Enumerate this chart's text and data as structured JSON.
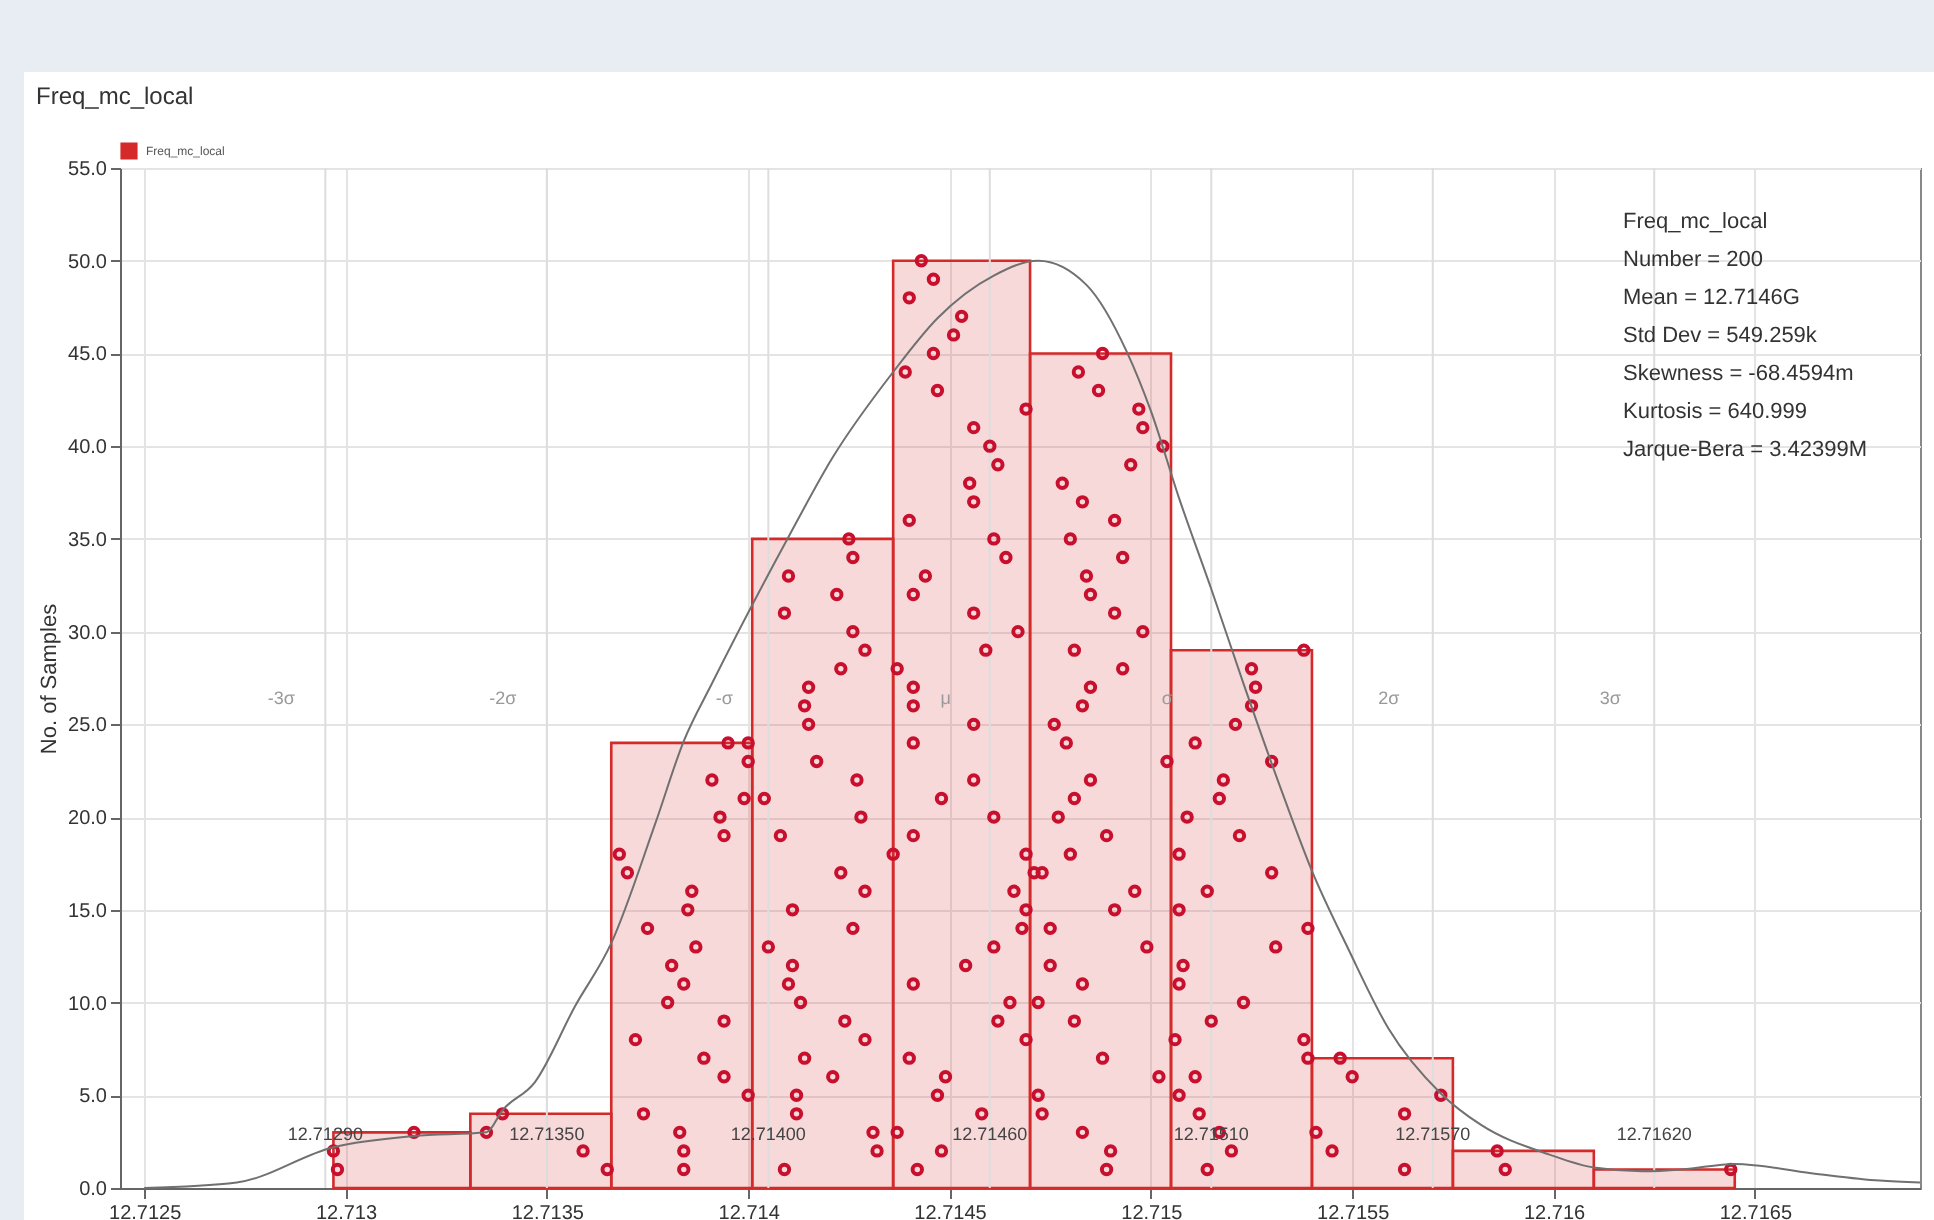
{
  "chart_data": {
    "type": "histogram",
    "title": "Freq_mc_local",
    "ylabel": "No. of Samples",
    "bins": [
      12.71297,
      12.71331,
      12.71366,
      12.71401,
      12.71436,
      12.7147,
      12.71505,
      12.7154,
      12.71575,
      12.7161,
      12.71645
    ],
    "series": [
      {
        "name": "Freq_mc_local",
        "type": "histogram",
        "color": "#d42a2a",
        "values": [
          3,
          4,
          24,
          35,
          50,
          45,
          29,
          7,
          2,
          1
        ]
      },
      {
        "type": "scatter",
        "marker": "circle",
        "color": "#c8102e",
        "x": [
          12.71297,
          12.71298,
          12.71317,
          12.71335,
          12.71339,
          12.71359,
          12.71365,
          12.71368,
          12.7137,
          12.71372,
          12.71374,
          12.71375,
          12.7138,
          12.71381,
          12.71383,
          12.71384,
          12.71384,
          12.71384,
          12.71385,
          12.71386,
          12.71387,
          12.71389,
          12.71391,
          12.71393,
          12.71394,
          12.71394,
          12.71394,
          12.71395,
          12.71399,
          12.714,
          12.714,
          12.714,
          12.71404,
          12.71405,
          12.71408,
          12.71409,
          12.7141,
          12.71411,
          12.71411,
          12.71412,
          12.71412,
          12.71413,
          12.71414,
          12.71414,
          12.71415,
          12.71415,
          12.71417,
          12.71421,
          12.71423,
          12.71423,
          12.71424,
          12.71426,
          12.71427,
          12.71428,
          12.71429,
          12.71429,
          12.71431,
          12.71432,
          12.7141,
          12.71409,
          12.71422,
          12.71425,
          12.71426,
          12.71426,
          12.71429,
          12.71436,
          12.71437,
          12.71437,
          12.71441,
          12.71441,
          12.71441,
          12.71441,
          12.71441,
          12.7144,
          12.71442,
          12.71447,
          12.71448,
          12.71448,
          12.71449,
          12.71454,
          12.71456,
          12.71456,
          12.71458,
          12.71443,
          12.7144,
          12.71446,
          12.71439,
          12.71446,
          12.71447,
          12.71451,
          12.71453,
          12.71456,
          12.71455,
          12.71456,
          12.7146,
          12.7144,
          12.71444,
          12.71441,
          12.71456,
          12.71459,
          12.71469,
          12.71462,
          12.71461,
          12.71464,
          12.71467,
          12.71461,
          12.71461,
          12.71462,
          12.71465,
          12.71466,
          12.71468,
          12.71469,
          12.71469,
          12.71469,
          12.71471,
          12.71472,
          12.71472,
          12.71473,
          12.71473,
          12.71475,
          12.71475,
          12.71476,
          12.71479,
          12.71477,
          12.7148,
          12.71481,
          12.71481,
          12.71483,
          12.71483,
          12.71483,
          12.71485,
          12.71485,
          12.71488,
          12.71489,
          12.7149,
          12.71489,
          12.71491,
          12.71496,
          12.71499,
          12.71502,
          12.71504,
          12.71488,
          12.71482,
          12.71487,
          12.71497,
          12.71498,
          12.71503,
          12.71495,
          12.71478,
          12.71483,
          12.71491,
          12.7148,
          12.71484,
          12.71485,
          12.71493,
          12.71491,
          12.71498,
          12.71481,
          12.71493,
          12.71506,
          12.71507,
          12.71507,
          12.71507,
          12.71507,
          12.71508,
          12.71509,
          12.71511,
          12.71511,
          12.71512,
          12.71514,
          12.71514,
          12.71515,
          12.71517,
          12.71517,
          12.71518,
          12.7152,
          12.71522,
          12.71521,
          12.71523,
          12.71525,
          12.71526,
          12.7153,
          12.7153,
          12.71531,
          12.71539,
          12.71538,
          12.71539,
          12.71538,
          12.71525,
          12.71541,
          12.71545,
          12.71547,
          12.7155,
          12.71563,
          12.71563,
          12.71572,
          12.71586,
          12.71588,
          12.71644
        ],
        "values": [
          2,
          1,
          3,
          3,
          4,
          2,
          1,
          18,
          17,
          8,
          4,
          14,
          10,
          12,
          3,
          2,
          1,
          11,
          15,
          16,
          13,
          7,
          22,
          20,
          9,
          19,
          6,
          24,
          21,
          23,
          5,
          24,
          21,
          13,
          19,
          1,
          11,
          12,
          15,
          4,
          5,
          10,
          7,
          26,
          27,
          25,
          23,
          6,
          28,
          17,
          9,
          14,
          22,
          20,
          16,
          8,
          3,
          2,
          33,
          31,
          32,
          35,
          34,
          30,
          29,
          18,
          28,
          3,
          27,
          26,
          24,
          19,
          11,
          7,
          1,
          5,
          2,
          21,
          6,
          12,
          25,
          22,
          4,
          50,
          48,
          49,
          44,
          45,
          43,
          46,
          47,
          41,
          38,
          37,
          40,
          36,
          33,
          32,
          31,
          29,
          42,
          39,
          35,
          34,
          30,
          20,
          13,
          9,
          10,
          16,
          14,
          18,
          8,
          15,
          17,
          10,
          5,
          4,
          17,
          14,
          12,
          25,
          24,
          20,
          18,
          21,
          9,
          11,
          3,
          26,
          27,
          22,
          7,
          19,
          2,
          1,
          15,
          16,
          13,
          6,
          23,
          45,
          44,
          43,
          42,
          41,
          40,
          39,
          38,
          37,
          36,
          35,
          33,
          32,
          34,
          31,
          30,
          29,
          28,
          8,
          18,
          5,
          15,
          11,
          12,
          20,
          24,
          6,
          4,
          16,
          1,
          9,
          3,
          21,
          22,
          2,
          19,
          25,
          10,
          26,
          27,
          23,
          17,
          13,
          14,
          8,
          7,
          29,
          28,
          3,
          2,
          7,
          6,
          4,
          1,
          5,
          2,
          1,
          1
        ]
      },
      {
        "type": "line",
        "color": "#707070",
        "x": [
          12.7125,
          12.71273,
          12.71297,
          12.71317,
          12.71335,
          12.71339,
          12.71347,
          12.71357,
          12.71366,
          12.71377,
          12.71384,
          12.71391,
          12.7141,
          12.71421,
          12.71436,
          12.71447,
          12.71461,
          12.71472,
          12.71484,
          12.71494,
          12.715,
          12.71507,
          12.71515,
          12.71523,
          12.71533,
          12.7154,
          12.71549,
          12.71559,
          12.71572,
          12.71582,
          12.71599,
          12.7161,
          12.71622,
          12.71632,
          12.71645,
          12.71664,
          12.71681,
          12.71691
        ],
        "values": [
          0,
          0.3,
          2.2,
          2.8,
          3,
          4.2,
          5.7,
          9.8,
          13.2,
          19.7,
          24.1,
          27.2,
          35.1,
          39.4,
          44,
          46.9,
          49.2,
          50,
          48.7,
          45.1,
          41.9,
          37.2,
          32.3,
          27.2,
          21.1,
          17.1,
          12.9,
          8.6,
          5.1,
          3.4,
          1.8,
          1.1,
          0.9,
          1,
          1.3,
          0.8,
          0.4,
          0.3
        ]
      }
    ],
    "xlim": [
      12.71244,
      12.71691
    ],
    "xticks": [
      12.7125,
      12.713,
      12.7135,
      12.714,
      12.7145,
      12.715,
      12.7155,
      12.716,
      12.7165
    ],
    "ylim": [
      0,
      55
    ],
    "yticks": [
      {
        "value": 0,
        "label": "0.0"
      },
      {
        "value": 5,
        "label": "5.0"
      },
      {
        "value": 10,
        "label": "10.0"
      },
      {
        "value": 15,
        "label": "15.0"
      },
      {
        "value": 20,
        "label": "20.0"
      },
      {
        "value": 25,
        "label": "25.0"
      },
      {
        "value": 30,
        "label": "30.0"
      },
      {
        "value": 35,
        "label": "35.0"
      },
      {
        "value": 40,
        "label": "40.0"
      },
      {
        "value": 45,
        "label": "45.0"
      },
      {
        "value": 50,
        "label": "50.0"
      },
      {
        "value": 55,
        "label": "55.0"
      }
    ],
    "grid": true,
    "legend": "top left",
    "ref_lines": [
      {
        "axis": "x",
        "value": 12.71295,
        "label": "-3σ",
        "color": "#dddddd"
      },
      {
        "axis": "x",
        "value": 12.7135,
        "label": "-2σ",
        "color": "#dddddd"
      },
      {
        "axis": "x",
        "value": 12.71405,
        "label": "-σ",
        "color": "#dddddd"
      },
      {
        "axis": "x",
        "value": 12.7146,
        "label": "μ",
        "color": "#dddddd"
      },
      {
        "axis": "x",
        "value": 12.71515,
        "label": "σ",
        "color": "#dddddd"
      },
      {
        "axis": "x",
        "value": 12.7157,
        "label": "2σ",
        "color": "#dddddd"
      },
      {
        "axis": "x",
        "value": 12.71625,
        "label": "3σ",
        "color": "#dddddd"
      }
    ],
    "annotations": [
      "12.71290",
      "12.71350",
      "12.71400",
      "12.71460",
      "12.71510",
      "12.71570",
      "12.71620",
      "Freq_mc_local",
      "Number = 200",
      "Mean = 12.7146G",
      "Std Dev = 549.259k",
      "Skewness = -68.4594m",
      "Kurtosis = 640.999",
      "Jarque-Bera = 3.42399M"
    ]
  }
}
